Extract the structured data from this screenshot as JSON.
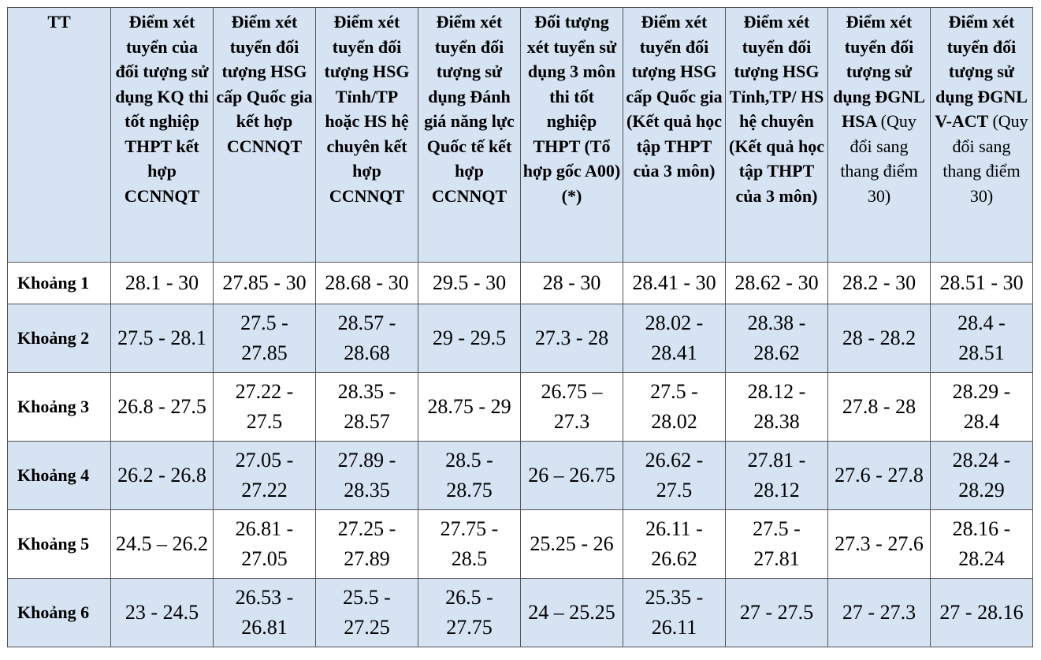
{
  "table": {
    "header": [
      {
        "title": "TT"
      },
      {
        "title": "Điểm xét tuyển của đối tượng sử dụng KQ thi tốt nghiệp THPT kết hợp CCNNQT"
      },
      {
        "title": "Điểm xét tuyển đối tượng HSG cấp Quốc gia kết hợp CCNNQT"
      },
      {
        "title": "Điểm xét tuyển đối tượng HSG Tỉnh/TP hoặc HS hệ chuyên kết hợp CCNNQT"
      },
      {
        "title": "Điểm xét tuyển đối tượng sử dụng Đánh giá năng lực Quốc tế kết hợp CCNNQT"
      },
      {
        "title": "Đối tượng xét tuyển sử dụng 3 môn thi tốt nghiệp THPT (Tổ hợp gốc A00) (*)"
      },
      {
        "title": "Điểm xét tuyển đối tượng HSG cấp Quốc gia (Kết quả học tập THPT của 3 môn)"
      },
      {
        "title": "Điểm xét tuyển đối tượng HSG Tỉnh,TP/ HS hệ chuyên (Kết quả học tập THPT của 3 môn)"
      },
      {
        "title": "Điểm xét tuyển đối tượng sử dụng ĐGNL HSA",
        "note": "(Quy đổi sang thang điểm  30)"
      },
      {
        "title": "Điểm xét tuyển đối tượng sử dụng ĐGNL V-ACT",
        "note": "(Quy đổi sang thang điểm 30)"
      }
    ],
    "rows": [
      {
        "label": "Khoảng 1",
        "cells": [
          "28.1 - 30",
          "27.85 - 30",
          "28.68 - 30",
          "29.5 - 30",
          "28 - 30",
          "28.41 - 30",
          "28.62 - 30",
          "28.2 - 30",
          "28.51 - 30"
        ]
      },
      {
        "label": "Khoảng 2",
        "cells": [
          "27.5 - 28.1",
          "27.5 - 27.85",
          "28.57 - 28.68",
          "29 - 29.5",
          "27.3 - 28",
          "28.02 - 28.41",
          "28.38 - 28.62",
          "28 - 28.2",
          "28.4 - 28.51"
        ]
      },
      {
        "label": "Khoảng 3",
        "cells": [
          "26.8 - 27.5",
          "27.22 - 27.5",
          "28.35 - 28.57",
          "28.75 - 29",
          "26.75 – 27.3",
          "27.5 - 28.02",
          "28.12 - 28.38",
          "27.8 - 28",
          "28.29 - 28.4"
        ]
      },
      {
        "label": "Khoảng 4",
        "cells": [
          "26.2 - 26.8",
          "27.05 - 27.22",
          "27.89 - 28.35",
          "28.5 - 28.75",
          "26 – 26.75",
          "26.62 - 27.5",
          "27.81 - 28.12",
          "27.6 - 27.8",
          "28.24 - 28.29"
        ]
      },
      {
        "label": "Khoảng 5",
        "cells": [
          "24.5 – 26.2",
          "26.81 - 27.05",
          "27.25 - 27.89",
          "27.75 - 28.5",
          "25.25 - 26",
          "26.11 - 26.62",
          "27.5 - 27.81",
          "27.3 - 27.6",
          "28.16 - 28.24"
        ]
      },
      {
        "label": "Khoảng 6",
        "cells": [
          "23 - 24.5",
          "26.53 - 26.81",
          "25.5 - 27.25",
          "26.5 - 27.75",
          "24 – 25.25",
          "25.35 - 26.11",
          "27 - 27.5",
          "27 - 27.3",
          "27 - 28.16"
        ]
      }
    ]
  }
}
